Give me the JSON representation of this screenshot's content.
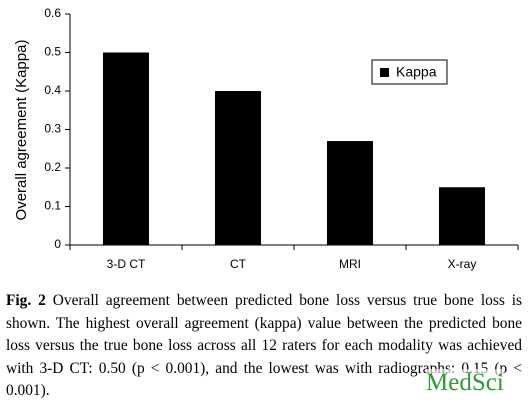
{
  "chart_data": {
    "type": "bar",
    "y_label": "Overall agreement (Kappa)",
    "categories": [
      "3-D CT",
      "CT",
      "MRI",
      "X-ray"
    ],
    "series": [
      {
        "name": "Kappa",
        "color": "#000000",
        "values": [
          0.5,
          0.4,
          0.27,
          0.15
        ]
      }
    ],
    "ylim": [
      0,
      0.6
    ],
    "yticks": [
      0,
      0.1,
      0.2,
      0.3,
      0.4,
      0.5,
      0.6
    ],
    "grid": false,
    "legend": "upper right"
  },
  "caption_label": "Fig. 2",
  "caption_text": "Overall agreement between predicted bone loss versus true bone loss is shown. The highest overall agreement (kappa) value between the predicted bone loss versus the true bone loss across all 12 raters for each modality was achieved with 3-D CT: 0.50 (p < 0.001), and the lowest was with radiographs: 0.15 (p < 0.001).",
  "watermark": "MedSci"
}
